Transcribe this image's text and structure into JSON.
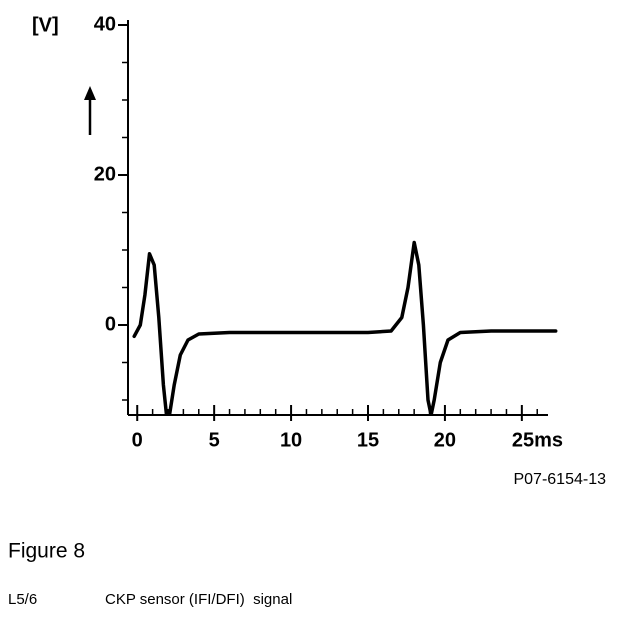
{
  "chart_data": {
    "type": "line",
    "y_label": "[V]",
    "x": [
      -0.2,
      0.2,
      0.5,
      0.8,
      1.1,
      1.4,
      1.7,
      1.9,
      2.1,
      2.4,
      2.8,
      3.3,
      4,
      6,
      10,
      15,
      16.5,
      17.2,
      17.6,
      18,
      18.3,
      18.6,
      18.9,
      19.1,
      19.3,
      19.7,
      20.2,
      21,
      23,
      27.2
    ],
    "values": [
      -1.5,
      0,
      4,
      9.5,
      8,
      1,
      -8,
      -12,
      -12,
      -8,
      -4,
      -2,
      -1.2,
      -1,
      -1,
      -1,
      -0.8,
      1,
      5,
      11,
      8,
      0,
      -10,
      -12,
      -10,
      -5,
      -2,
      -1,
      -0.8,
      -0.8
    ],
    "color": "#000000",
    "xlim": [
      -0.6,
      26.7
    ],
    "ylim": [
      -12,
      40
    ],
    "xticks": [
      0,
      5,
      10,
      15,
      20,
      {
        "value": 25,
        "label": "25ms"
      }
    ],
    "xminorticks": [
      1,
      2,
      3,
      4,
      6,
      7,
      8,
      9,
      11,
      12,
      13,
      14,
      16,
      17,
      18,
      19,
      21,
      22,
      23,
      24,
      26
    ],
    "yticks": [
      0,
      20,
      40
    ],
    "yminorticks": [
      -10,
      -5,
      5,
      10,
      15,
      25,
      30,
      35
    ],
    "figure_id": "P07-6154-13",
    "figure_title": "Figure 8",
    "caption_code": "L5/6",
    "caption": "CKP sensor (IFI/DFI)  signal"
  }
}
